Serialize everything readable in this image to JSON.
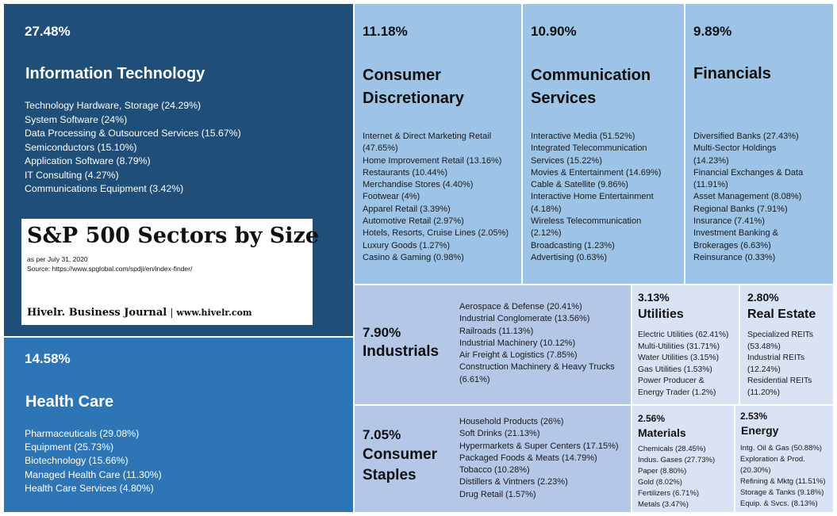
{
  "title_card": {
    "title": "S&P 500 Sectors by Size",
    "date_note": "as per July 31, 2020",
    "source": "Source: https://www.spglobal.com/spdji/en/index-finder/",
    "publisher": "Hivelr. Business Journal",
    "separator": "|",
    "url": "www.hivelr.com"
  },
  "colors": {
    "it": "#1f4e79",
    "health_care": "#2e75b6",
    "mid_blue": "#9dc3e6",
    "lavender": "#b4c7e7",
    "pale": "#dae3f3"
  },
  "chart_data": {
    "type": "treemap",
    "title": "S&P 500 Sectors by Size",
    "sectors": [
      {
        "name": "Information Technology",
        "value": 27.48,
        "label": "27.48%",
        "subsectors": [
          "Technology Hardware, Storage (24.29%)",
          "System Software (24%)",
          "Data Processing & Outsourced Services (15.67%)",
          "Semiconductors (15.10%)",
          "Application Software (8.79%)",
          "IT Consulting (4.27%)",
          "Communications Equipment (3.42%)"
        ]
      },
      {
        "name": "Health Care",
        "value": 14.58,
        "label": "14.58%",
        "subsectors": [
          "Pharmaceuticals (29.08%)",
          "Equipment (25.73%)",
          "Biotechnology (15.66%)",
          "Managed Health Care (11.30%)",
          "Health Care Services (4.80%)"
        ]
      },
      {
        "name": "Consumer\nDiscretionary",
        "value": 11.18,
        "label": "11.18%",
        "subsectors": [
          "Internet & Direct Marketing Retail\n(47.65%)",
          "Home Improvement Retail (13.16%)",
          "Restaurants (10.44%)",
          "Merchandise Stores (4.40%)",
          "Footwear (4%)",
          "Apparel Retail (3.39%)",
          "Automotive Retail (2.97%)",
          "Hotels, Resorts, Cruise Lines (2.05%)",
          "Luxury Goods (1.27%)",
          "Casino & Gaming (0.98%)"
        ]
      },
      {
        "name": "Communication\nServices",
        "value": 10.9,
        "label": "10.90%",
        "subsectors": [
          "Interactive Media (51.52%)",
          "Integrated Telecommunication\nServices (15.22%)",
          "Movies & Entertainment (14.69%)",
          "Cable & Satellite (9.86%)",
          "Interactive Home Entertainment\n(4.18%)",
          "Wireless Telecommunication\n(2.12%)",
          "Broadcasting (1.23%)",
          "Advertising (0.63%)"
        ]
      },
      {
        "name": "Financials",
        "value": 9.89,
        "label": "9.89%",
        "subsectors": [
          "Diversified Banks (27.43%)",
          "Multi-Sector Holdings\n(14.23%)",
          "Financial Exchanges & Data\n(11.91%)",
          "Asset Management (8.08%)",
          "Regional Banks (7.91%)",
          "Insurance (7.41%)",
          "Investment Banking &\nBrokerages (6.63%)",
          "Reinsurance (0.33%)"
        ]
      },
      {
        "name": "Industrials",
        "value": 7.9,
        "label": "7.90%",
        "subsectors": [
          "Aerospace & Defense (20.41%)",
          "Industrial Conglomerate (13.56%)",
          "Railroads (11.13%)",
          "Industrial Machinery (10.12%)",
          "Air Freight & Logistics (7.85%)",
          "Construction Machinery & Heavy Trucks\n(6.61%)"
        ]
      },
      {
        "name": "Consumer\nStaples",
        "value": 7.05,
        "label": "7.05%",
        "subsectors": [
          "Household Products (26%)",
          "Soft Drinks (21.13%)",
          "Hypermarkets & Super Centers (17.15%)",
          "Packaged Foods & Meats (14.79%)",
          "Tobacco (10.28%)",
          "Distillers & Vintners (2.23%)",
          "Drug Retail (1.57%)"
        ]
      },
      {
        "name": "Utilities",
        "value": 3.13,
        "label": "3.13%",
        "subsectors": [
          "Electric Utilities (62.41%)",
          "Multi-Utilities (31.71%)",
          "Water Utilities (3.15%)",
          "Gas Utilities (1.53%)",
          "Power Producer &\nEnergy Trader (1.2%)"
        ]
      },
      {
        "name": "Real Estate",
        "value": 2.8,
        "label": "2.80%",
        "subsectors": [
          "Specialized REITs\n(53.48%)",
          "Industrial REITs\n(12.24%)",
          "Residential REITs\n(11.20%)"
        ]
      },
      {
        "name": "Materials",
        "value": 2.56,
        "label": "2.56%",
        "subsectors": [
          "Chemicals (28.45%)",
          "Indus. Gases (27.73%)",
          "Paper (8.80%)",
          "Gold (8.02%)",
          "Fertilizers (6.71%)",
          "Metals (3.47%)"
        ]
      },
      {
        "name": "Energy",
        "value": 2.53,
        "label": "2.53%",
        "subsectors": [
          "Intg. Oil & Gas (50.88%)",
          "Exploration & Prod.\n(20.30%)",
          "Refining & Mktg (11.51%)",
          "Storage & Tanks (9.18%)",
          "Equip. & Svcs. (8.13%)"
        ]
      }
    ]
  }
}
